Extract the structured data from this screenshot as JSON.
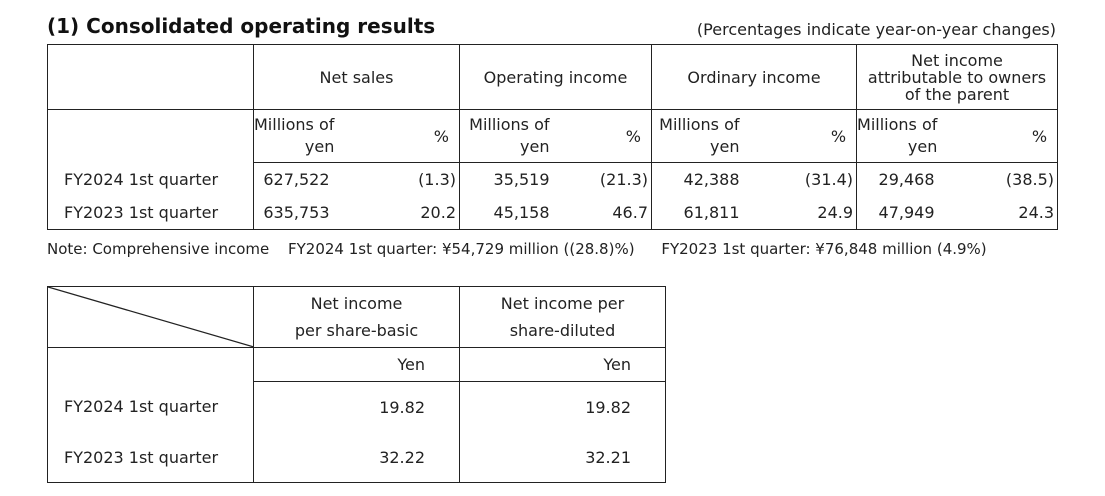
{
  "heading": "(1)  Consolidated operating results",
  "percent_note": "(Percentages indicate year-on-year changes)",
  "results_table": {
    "headers": {
      "net_sales": "Net sales",
      "operating_income": "Operating income",
      "ordinary_income": "Ordinary income",
      "net_income_line1": "Net income",
      "net_income_line2": "attributable to owners",
      "net_income_line3": "of the parent"
    },
    "unit_millions_line1": "Millions of",
    "unit_millions_line2": "yen",
    "unit_percent": "%",
    "rows": [
      {
        "label": "FY2024 1st quarter",
        "net_sales": "627,522",
        "net_sales_pct": "(1.3)",
        "operating_income": "35,519",
        "operating_income_pct": "(21.3)",
        "ordinary_income": "42,388",
        "ordinary_income_pct": "(31.4)",
        "net_income": "29,468",
        "net_income_pct": "(38.5)"
      },
      {
        "label": "FY2023 1st quarter",
        "net_sales": "635,753",
        "net_sales_pct": "20.2",
        "operating_income": "45,158",
        "operating_income_pct": "46.7",
        "ordinary_income": "61,811",
        "ordinary_income_pct": "24.9",
        "net_income": "47,949",
        "net_income_pct": "24.3"
      }
    ]
  },
  "note": {
    "label": "Note: Comprehensive income",
    "fy2024": "FY2024 1st quarter: ¥54,729 million ((28.8)%)",
    "fy2023": "FY2023 1st quarter: ¥76,848 million (4.9%)"
  },
  "per_share_table": {
    "headers": {
      "basic_line1": "Net income",
      "basic_line2": "per share-basic",
      "diluted_line1": "Net income per",
      "diluted_line2": "share-diluted"
    },
    "unit": "Yen",
    "rows": [
      {
        "label": "FY2024 1st quarter",
        "basic": "19.82",
        "diluted": "19.82"
      },
      {
        "label": "FY2023 1st quarter",
        "basic": "32.22",
        "diluted": "32.21"
      }
    ]
  }
}
